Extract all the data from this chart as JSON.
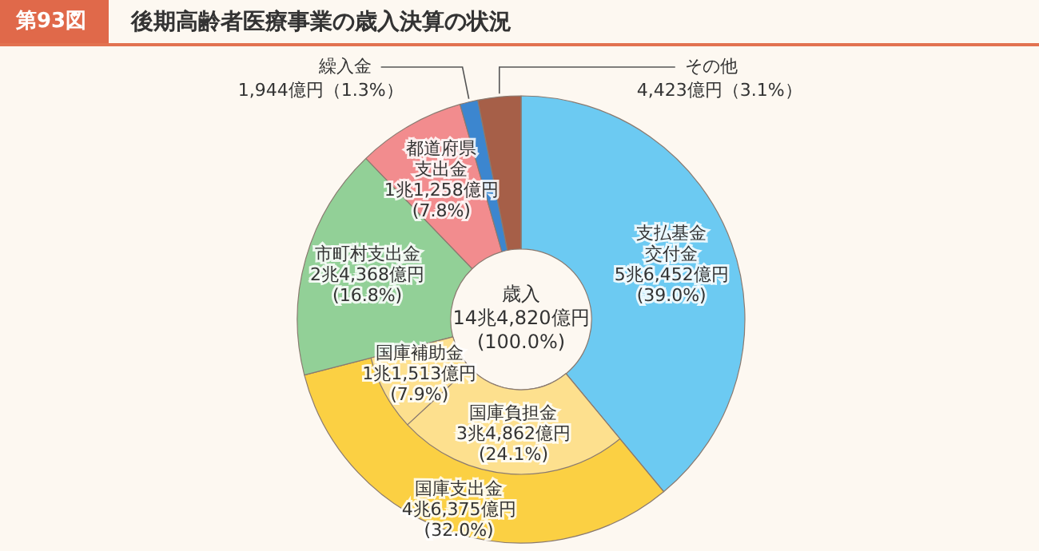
{
  "chart_data": [
    {
      "type": "donut",
      "title": "後期高齢者医療事業の歳入決算の状況",
      "subtitle": "第93図",
      "categories": [
        "支払基金交付金",
        "国庫支出金",
        "市町村支出金",
        "都道府県支出金",
        "繰入金",
        "その他"
      ],
      "values": [
        39.0,
        32.0,
        16.8,
        7.8,
        1.3,
        3.1
      ],
      "colors": [
        "#6ccaf2",
        "#fbd043",
        "#92d097",
        "#f28c8e",
        "#3c86cf",
        "#a65f48"
      ],
      "value_labels": [
        "5兆6,452億円 (39.0%)",
        "4兆6,375億円 (32.0%)",
        "2兆4,368億円 (16.8%)",
        "1兆1,258億円 (7.8%)",
        "1,944億円（1.3%）",
        "4,423億円（3.1%）"
      ],
      "annotations": [
        "歳入 14兆4,820億円 (100.0%)"
      ]
    },
    {
      "type": "donut",
      "categories": [
        "国庫負担金",
        "国庫補助金"
      ],
      "values": [
        24.1,
        7.9
      ],
      "colors": [
        "#fde08e",
        "#fde08e"
      ],
      "value_labels": [
        "3兆4,862億円 (24.1%)",
        "1兆1,513億円 (7.9%)"
      ]
    }
  ]
}
